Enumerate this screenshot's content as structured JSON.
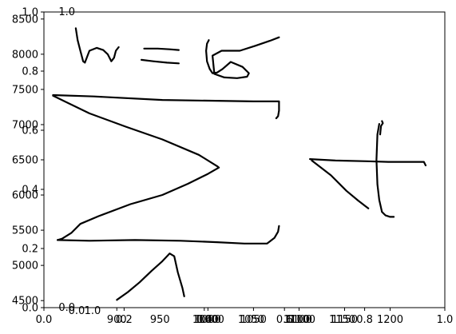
{
  "chart_data": {
    "type": "line",
    "title": "",
    "xlabel": "",
    "ylabel": "",
    "legend": "none",
    "grid": false,
    "axes": [
      {
        "role": "data",
        "xlim": [
          820,
          1260
        ],
        "ylim": [
          4400,
          8600
        ],
        "xticks": [
          "900",
          "1000",
          "1050",
          "1100",
          "1150",
          "1200"
        ],
        "xticks_alt": [
          "950",
          "1000",
          "1050",
          "1100",
          "1150"
        ],
        "xticks_offset": [
          "1000",
          "1100"
        ],
        "yticks": [
          "4500",
          "5000",
          "5500",
          "6000",
          "6500",
          "7000",
          "7500",
          "8000",
          "8500"
        ]
      },
      {
        "role": "overlay-left",
        "xlim": [
          0,
          1
        ],
        "ylim": [
          0,
          1
        ],
        "xticks": [
          "0.0",
          "0.2",
          "0.4",
          "0.6",
          "0.8",
          "1.0"
        ],
        "yticks": [
          "0.0",
          "0.2",
          "0.4",
          "0.6",
          "0.8",
          "1.0"
        ]
      },
      {
        "role": "overlay-small",
        "xlim": [
          0,
          1
        ],
        "ylim": [
          0,
          1
        ],
        "xticks": [
          "0.0",
          "1.0"
        ],
        "yticks": [
          "0.0",
          "1.0"
        ]
      }
    ],
    "series": [
      {
        "x": [
          855,
          857,
          860,
          863,
          865,
          870,
          878,
          885,
          890,
          894,
          897,
          899,
          902
        ],
        "y": [
          8370,
          8200,
          8050,
          7900,
          7880,
          8050,
          8090,
          8060,
          8000,
          7900,
          7950,
          8050,
          8100
        ]
      },
      {
        "x": [
          930,
          945,
          958,
          968
        ],
        "y": [
          8080,
          8080,
          8070,
          8060
        ]
      },
      {
        "x": [
          927,
          940,
          955,
          968
        ],
        "y": [
          7920,
          7900,
          7880,
          7870
        ]
      },
      {
        "x": [
          1001,
          999,
          998,
          999,
          1002,
          1005,
          1010,
          1016,
          1025,
          1038,
          1045,
          1043,
          1032,
          1018,
          1007,
          1005,
          1015,
          1035,
          1052,
          1068,
          1078
        ],
        "y": [
          8200,
          8150,
          8050,
          7900,
          7790,
          7730,
          7740,
          7790,
          7890,
          7820,
          7730,
          7680,
          7660,
          7670,
          7720,
          7980,
          8050,
          8050,
          8120,
          8190,
          8240
        ]
      },
      {
        "x": [
          830,
          875,
          950,
          1050,
          1078,
          1078,
          1077,
          1075
        ],
        "y": [
          7420,
          7400,
          7350,
          7330,
          7330,
          7200,
          7120,
          7090
        ]
      },
      {
        "x": [
          830,
          870,
          910,
          950,
          990,
          1010,
          1012,
          1000,
          978,
          950,
          915,
          880,
          860,
          850,
          840,
          835
        ],
        "y": [
          7410,
          7160,
          6970,
          6790,
          6570,
          6410,
          6390,
          6300,
          6160,
          6000,
          5870,
          5700,
          5590,
          5460,
          5380,
          5360
        ]
      },
      {
        "x": [
          835,
          870,
          920,
          970,
          1010,
          1040,
          1065,
          1073,
          1077,
          1078
        ],
        "y": [
          5360,
          5350,
          5360,
          5350,
          5330,
          5310,
          5310,
          5390,
          5480,
          5560
        ]
      },
      {
        "x": [
          900,
          912,
          925,
          938,
          950,
          958,
          963,
          967,
          972,
          974
        ],
        "y": [
          4510,
          4620,
          4760,
          4920,
          5060,
          5170,
          5130,
          4900,
          4680,
          4560
        ]
      },
      {
        "x": [
          1112,
          1140,
          1175,
          1198,
          1218,
          1237,
          1239
        ],
        "y": [
          6510,
          6490,
          6480,
          6470,
          6470,
          6470,
          6420
        ]
      },
      {
        "x": [
          1114,
          1135,
          1152,
          1165,
          1173,
          1176
        ],
        "y": [
          6490,
          6280,
          6060,
          5920,
          5840,
          5810
        ]
      },
      {
        "x": [
          1188,
          1186,
          1185,
          1186,
          1188,
          1191,
          1195,
          1200,
          1204
        ],
        "y": [
          7010,
          6860,
          6500,
          6150,
          5930,
          5760,
          5710,
          5690,
          5690
        ]
      },
      {
        "x": [
          1189,
          1190,
          1192,
          1191
        ],
        "y": [
          6860,
          6980,
          7020,
          7050
        ]
      }
    ]
  }
}
